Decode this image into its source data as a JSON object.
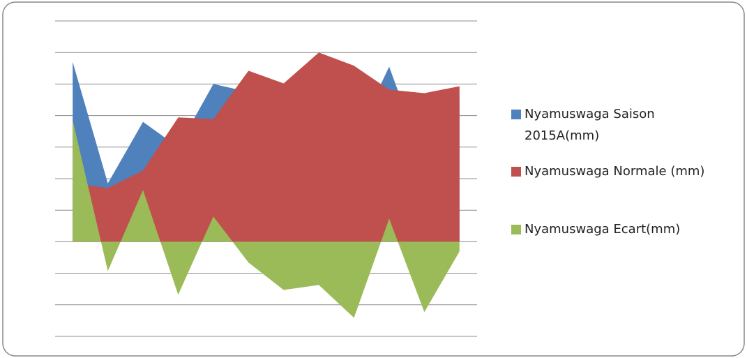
{
  "chart_data": {
    "type": "area",
    "categories": [
      null,
      null,
      null,
      null,
      null,
      null,
      null,
      null,
      null,
      null,
      null,
      null
    ],
    "series": [
      {
        "name": "Nyamuswaga Saison 2015A(mm)",
        "color": "#4f81bd",
        "values": [
          5.7,
          1.85,
          3.8,
          3.0,
          5.0,
          4.75,
          3.5,
          4.6,
          3.2,
          5.55,
          2.5,
          4.6
        ]
      },
      {
        "name": "Nyamuswaga Normale (mm)",
        "color": "#c0504d",
        "values": [
          1.86,
          1.7,
          2.26,
          3.94,
          3.89,
          5.42,
          5.02,
          6.0,
          5.58,
          4.82,
          4.71,
          4.93
        ]
      },
      {
        "name": "Nyamuswaga Ecart(mm)",
        "color": "#9bbb59",
        "values": [
          3.85,
          -0.93,
          1.64,
          -1.68,
          0.8,
          -0.66,
          -1.53,
          -1.37,
          -2.41,
          0.73,
          -2.23,
          -0.31
        ]
      }
    ],
    "ylim": [
      -3,
      7
    ],
    "yticks": [
      -3,
      -2,
      -1,
      0,
      1,
      2,
      3,
      4,
      5,
      6,
      7
    ],
    "grid": true,
    "legend": "right"
  }
}
